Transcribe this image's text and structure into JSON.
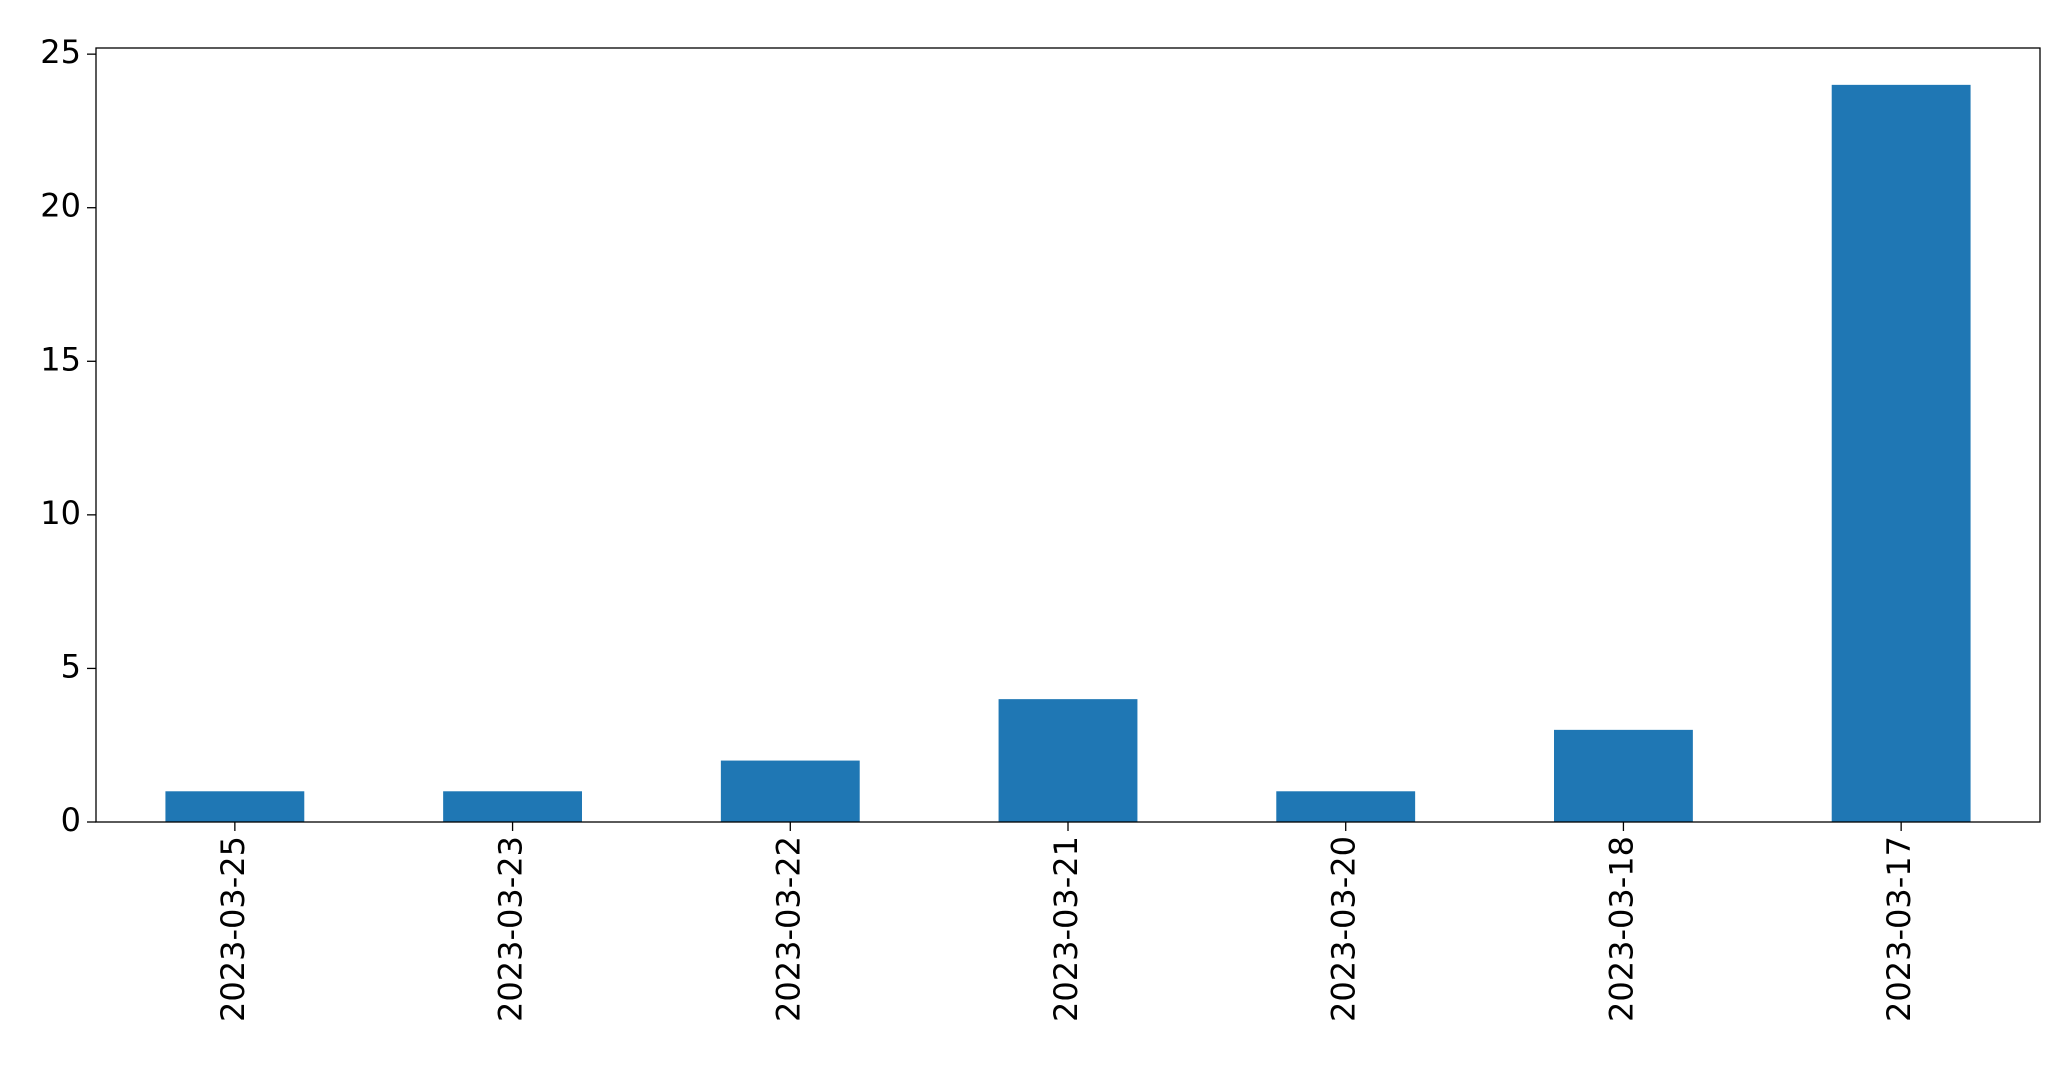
{
  "chart_data": {
    "type": "bar",
    "categories": [
      "2023-03-25",
      "2023-03-23",
      "2023-03-22",
      "2023-03-21",
      "2023-03-20",
      "2023-03-18",
      "2023-03-17"
    ],
    "values": [
      1,
      1,
      2,
      4,
      1,
      3,
      24
    ],
    "color": "#1f77b4",
    "ylim": [
      0,
      25.2
    ],
    "yticks": [
      0,
      5,
      10,
      15,
      20,
      25
    ],
    "grid": false
  }
}
